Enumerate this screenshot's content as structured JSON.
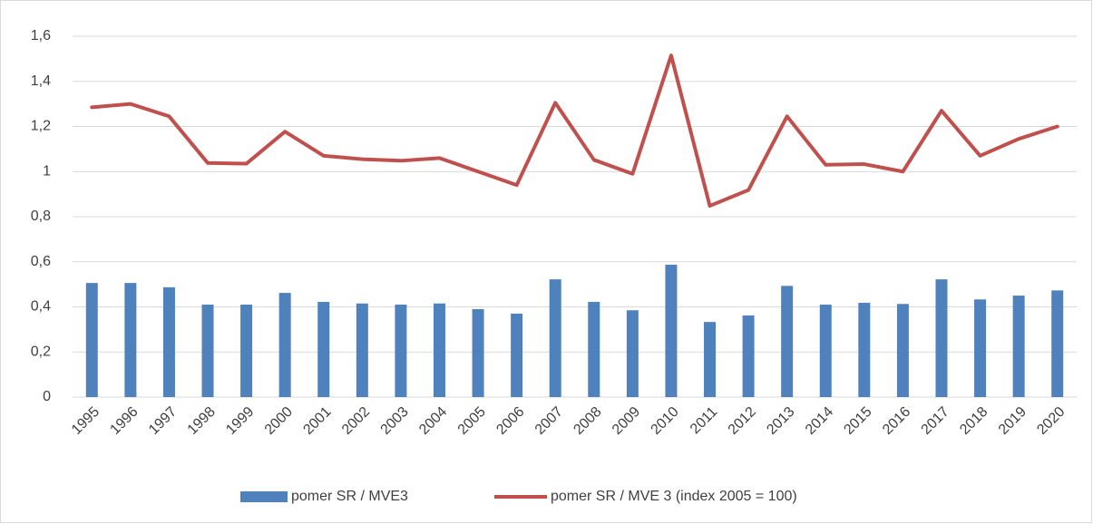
{
  "chart_data": {
    "type": "combo",
    "categories": [
      "1995",
      "1996",
      "1997",
      "1998",
      "1999",
      "2000",
      "2001",
      "2002",
      "2003",
      "2004",
      "2005",
      "2006",
      "2007",
      "2008",
      "2009",
      "2010",
      "2011",
      "2012",
      "2013",
      "2014",
      "2015",
      "2016",
      "2017",
      "2018",
      "2019",
      "2020"
    ],
    "series": [
      {
        "name": "pomer SR / MVE3",
        "type": "bar",
        "color": "#4f81bd",
        "values": [
          0.506,
          0.506,
          0.487,
          0.41,
          0.41,
          0.462,
          0.422,
          0.415,
          0.41,
          0.415,
          0.39,
          0.37,
          0.522,
          0.422,
          0.385,
          0.587,
          0.333,
          0.362,
          0.493,
          0.41,
          0.418,
          0.413,
          0.522,
          0.433,
          0.45,
          0.473
        ]
      },
      {
        "name": "pomer SR / MVE 3 (index 2005 = 100)",
        "type": "line",
        "color": "#c0504d",
        "values": [
          1.285,
          1.3,
          1.245,
          1.038,
          1.035,
          1.177,
          1.07,
          1.055,
          1.048,
          1.06,
          1.0,
          0.94,
          1.305,
          1.052,
          0.99,
          1.515,
          0.848,
          0.918,
          1.245,
          1.03,
          1.033,
          1.0,
          1.27,
          1.07,
          1.145,
          1.2
        ]
      }
    ],
    "ylim": [
      0,
      1.6
    ],
    "yticks": [
      0,
      {
        "value": 0.2,
        "label": "0,2"
      },
      {
        "value": 0.4,
        "label": "0,4"
      },
      {
        "value": 0.6,
        "label": "0,6"
      },
      {
        "value": 0.8,
        "label": "0,8"
      },
      1,
      {
        "value": 1.2,
        "label": "1,2"
      },
      {
        "value": 1.4,
        "label": "1,4"
      },
      {
        "value": 1.6,
        "label": "1,6"
      }
    ],
    "grid": true,
    "legend": "bottom"
  }
}
